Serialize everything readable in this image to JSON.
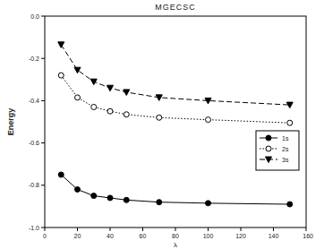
{
  "chart_data": {
    "type": "line",
    "title": "MGECSC",
    "x_label": "λ",
    "y_label": "Energy",
    "x": [
      10,
      20,
      30,
      40,
      50,
      70,
      100,
      150
    ],
    "series": [
      {
        "name": "1s",
        "color": "#000000",
        "marker": "circle",
        "line_style": "solid",
        "values": [
          -0.75,
          -0.82,
          -0.85,
          -0.86,
          -0.87,
          -0.88,
          -0.885,
          -0.89
        ]
      },
      {
        "name": "2s",
        "color": "#000000",
        "marker": "circle-open",
        "line_style": "dotted",
        "values": [
          -0.28,
          -0.385,
          -0.43,
          -0.45,
          -0.465,
          -0.48,
          -0.49,
          -0.505
        ]
      },
      {
        "name": "3s",
        "color": "#000000",
        "marker": "triangle-down",
        "line_style": "dashed",
        "values": [
          -0.135,
          -0.255,
          -0.31,
          -0.34,
          -0.36,
          -0.385,
          -0.4,
          -0.42
        ]
      }
    ],
    "xlim": [
      0,
      160
    ],
    "xticks": [
      0,
      20,
      40,
      60,
      80,
      100,
      120,
      140,
      160
    ],
    "ylim": [
      -1,
      0
    ],
    "yticks": [
      {
        "value": -1,
        "label": "-1.0"
      },
      -0.8,
      -0.6,
      -0.4,
      -0.2,
      {
        "value": 0,
        "label": "0.0"
      }
    ],
    "legend": "center right",
    "grid": false
  }
}
